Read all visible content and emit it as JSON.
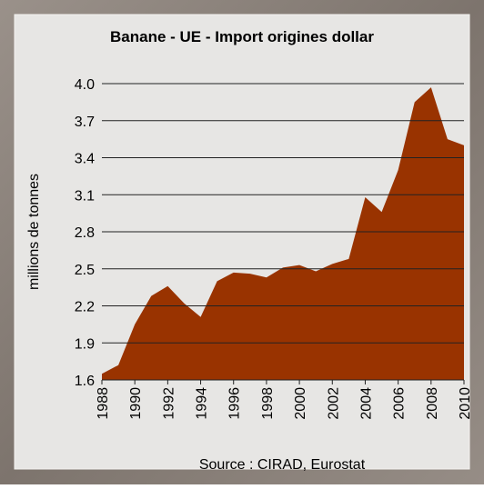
{
  "chart_data": {
    "type": "area",
    "title": "Banane - UE - Import origines dollar",
    "y_label": "millions de tonnes",
    "source": "Source : CIRAD, Eurostat",
    "x": [
      1988,
      1989,
      1990,
      1991,
      1992,
      1993,
      1994,
      1995,
      1996,
      1997,
      1998,
      1999,
      2000,
      2001,
      2002,
      2003,
      2004,
      2005,
      2006,
      2007,
      2008,
      2009,
      2010
    ],
    "values": [
      1.65,
      1.72,
      2.05,
      2.28,
      2.36,
      2.22,
      2.11,
      2.4,
      2.47,
      2.46,
      2.43,
      2.51,
      2.53,
      2.48,
      2.54,
      2.58,
      3.08,
      2.96,
      3.3,
      3.85,
      3.97,
      3.55,
      3.5
    ],
    "color": "#993300",
    "xlim": [
      1988,
      2010
    ],
    "xticks": [
      1988,
      1990,
      1992,
      1994,
      1996,
      1998,
      2000,
      2002,
      2004,
      2006,
      2008,
      2010
    ],
    "ylim": [
      1.6,
      4.0
    ],
    "yticks": [
      1.6,
      1.9,
      2.2,
      2.5,
      2.8,
      3.1,
      3.4,
      3.7,
      {
        "value": 4.0,
        "label": "4.0"
      }
    ],
    "grid": true
  }
}
